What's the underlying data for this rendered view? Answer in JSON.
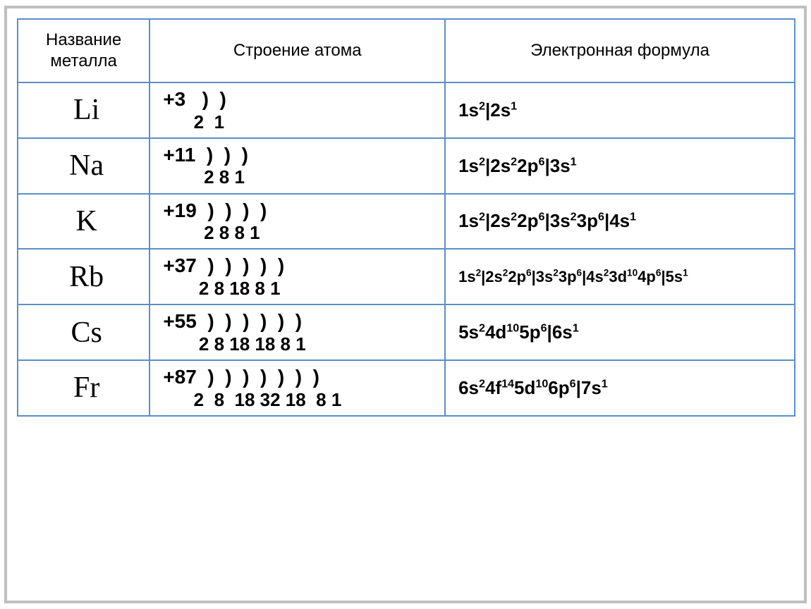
{
  "colors": {
    "table_border": "#5a8fc9",
    "frame_border": "#bfbfbf",
    "background": "#ffffff",
    "text": "#000000"
  },
  "fonts": {
    "header_family": "Arial",
    "header_size_pt": 18,
    "symbol_family": "Times New Roman",
    "symbol_size_pt": 32,
    "cell_family": "Arial",
    "cell_size_pt": 21,
    "cell_weight": "bold"
  },
  "table": {
    "column_widths_pct": [
      17,
      38,
      45
    ],
    "headers": {
      "name": "Название металла",
      "structure": "Строение атома",
      "formula": "Электронная формула"
    },
    "rows": [
      {
        "symbol": "Li",
        "struct_line1": "+3   )  )",
        "struct_line2": "      2  1",
        "formula_html": "1s<sup>2</sup>|2s<sup>1</sup>",
        "formula_size": "normal"
      },
      {
        "symbol": "Na",
        "struct_line1": "+11  )  )  )",
        "struct_line2": "        2 8 1",
        "formula_html": "1s<sup>2</sup>|2s<sup>2</sup>2p<sup>6</sup>|3s<sup>1</sup>",
        "formula_size": "normal"
      },
      {
        "symbol": "K",
        "struct_line1": "+19  )  )  )  )",
        "struct_line2": "        2 8 8 1",
        "formula_html": "1s<sup>2</sup>|2s<sup>2</sup>2p<sup>6</sup>|3s<sup>2</sup>3p<sup>6</sup>|4s<sup>1</sup>",
        "formula_size": "normal"
      },
      {
        "symbol": "Rb",
        "struct_line1": "+37  )  )  )  )  )",
        "struct_line2": "       2 8 18 8 1",
        "formula_html": "1s<sup>2</sup>|2s<sup>2</sup>2p<sup>6</sup>|3s<sup>2</sup>3p<sup>6</sup>|4s<sup>2</sup>3d<sup>10</sup>4p<sup>6</sup>|5s<sup>1</sup>",
        "formula_size": "small"
      },
      {
        "symbol": "Cs",
        "struct_line1": "+55  )  )  )  )  )  )",
        "struct_line2": "       2 8 18 18 8 1",
        "formula_html": "5s<sup>2</sup>4d<sup>10</sup>5p<sup>6</sup>|6s<sup>1</sup>",
        "formula_size": "normal"
      },
      {
        "symbol": "Fr",
        "struct_line1": "+87  )  )  )  )  )  )  )",
        "struct_line2": "      2  8  18 32 18  8 1",
        "formula_html": "6s<sup>2</sup>4f<sup>14</sup>5d<sup>10</sup>6p<sup>6</sup>|7s<sup>1</sup>",
        "formula_size": "normal"
      }
    ]
  }
}
